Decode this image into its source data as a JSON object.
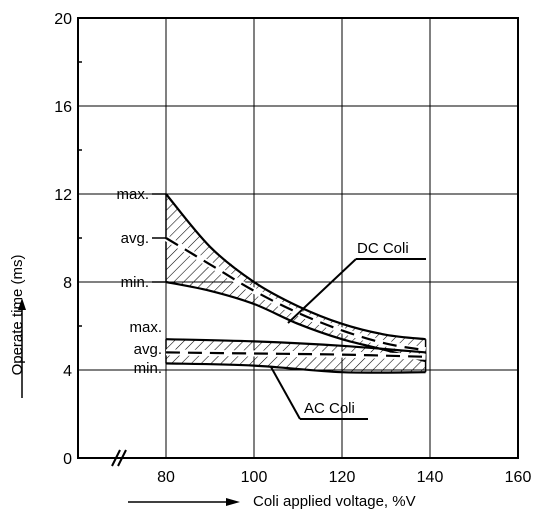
{
  "chart_data": {
    "type": "line",
    "title": "",
    "xlabel": "Coli applied voltage, %V",
    "ylabel": "Operate time (ms)",
    "xlim": [
      60,
      160
    ],
    "ylim": [
      0,
      20
    ],
    "x_ticks": [
      80,
      100,
      120,
      140,
      160
    ],
    "y_ticks": [
      0,
      4,
      8,
      12,
      16,
      20
    ],
    "grid": true,
    "x_axis_break": true,
    "band_labels": [
      "max.",
      "avg.",
      "min."
    ],
    "series": [
      {
        "band": "DC Coli",
        "name": "max.",
        "style": "solid",
        "x": [
          80,
          90,
          100,
          110,
          120,
          130,
          139
        ],
        "y": [
          12.0,
          9.6,
          8.0,
          6.9,
          6.1,
          5.6,
          5.4
        ]
      },
      {
        "band": "DC Coli",
        "name": "avg.",
        "style": "dashed",
        "x": [
          80,
          90,
          100,
          110,
          120,
          130,
          139
        ],
        "y": [
          10.0,
          8.8,
          7.6,
          6.6,
          5.8,
          5.2,
          4.9
        ]
      },
      {
        "band": "DC Coli",
        "name": "min.",
        "style": "solid",
        "x": [
          80,
          90,
          100,
          110,
          120,
          130,
          139
        ],
        "y": [
          8.0,
          7.6,
          7.0,
          6.1,
          5.4,
          4.9,
          4.4
        ]
      },
      {
        "band": "AC Coli",
        "name": "max.",
        "style": "solid",
        "x": [
          80,
          100,
          120,
          139
        ],
        "y": [
          5.4,
          5.3,
          5.1,
          4.8
        ]
      },
      {
        "band": "AC Coli",
        "name": "avg.",
        "style": "dashed",
        "x": [
          80,
          100,
          120,
          139
        ],
        "y": [
          4.8,
          4.75,
          4.7,
          4.6
        ]
      },
      {
        "band": "AC Coli",
        "name": "min.",
        "style": "solid",
        "x": [
          80,
          100,
          120,
          139
        ],
        "y": [
          4.3,
          4.2,
          3.9,
          3.9
        ]
      }
    ],
    "annotations": [
      {
        "text": "DC Coli"
      },
      {
        "text": "AC Coli"
      }
    ]
  }
}
